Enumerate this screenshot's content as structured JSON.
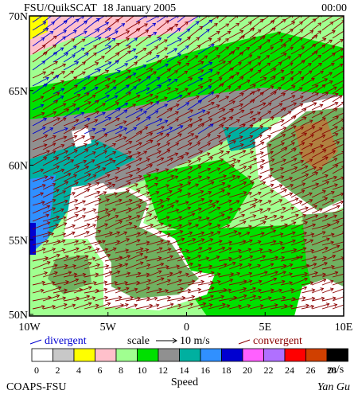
{
  "header": {
    "title": "FSU/QuikSCAT  18 January 2005",
    "time": "00:00"
  },
  "axes": {
    "lat_labels": [
      "70N",
      "65N",
      "60N",
      "55N",
      "50N"
    ],
    "lon_labels": [
      "10W",
      "5W",
      "0",
      "5E",
      "10E"
    ]
  },
  "legend": {
    "divergent": "divergent",
    "scale": "scale",
    "scale_value": "10 m/s",
    "convergent": "convergent"
  },
  "colorbar": {
    "labels": [
      0,
      2,
      4,
      6,
      8,
      10,
      12,
      14,
      16,
      18,
      20,
      22,
      24,
      26,
      28
    ],
    "unit": "m/s",
    "title": "Speed",
    "colors": [
      "#ffffff",
      "#c8c8c8",
      "#ffff00",
      "#ffc0cb",
      "#a0ff90",
      "#00e000",
      "#909090",
      "#00b0a0",
      "#3090ff",
      "#0000d0",
      "#ff60ff",
      "#b070ff",
      "#ff0000",
      "#d04000",
      "#000000"
    ]
  },
  "footer": {
    "left": "COAPS-FSU",
    "right": "Yan Gu"
  }
}
